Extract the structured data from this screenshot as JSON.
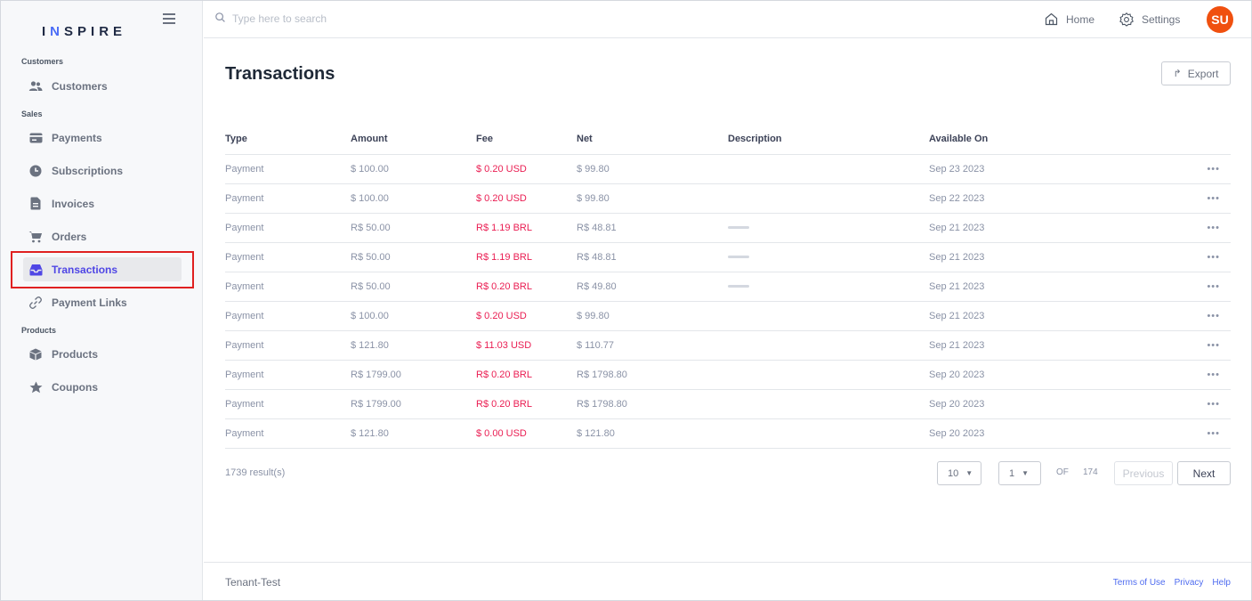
{
  "brand": {
    "logo_prefix": "I",
    "logo_n": "N",
    "logo_suffix": "SPIRE"
  },
  "search": {
    "placeholder": "Type here to search"
  },
  "topnav": {
    "home": "Home",
    "settings": "Settings",
    "avatar": "SU"
  },
  "sidebar": {
    "sections": [
      {
        "label": "Customers"
      },
      {
        "label": "Sales"
      },
      {
        "label": "Products"
      }
    ],
    "items": [
      {
        "label": "Customers",
        "icon": "users-icon"
      },
      {
        "label": "Payments",
        "icon": "credit-card-icon"
      },
      {
        "label": "Subscriptions",
        "icon": "clock-icon"
      },
      {
        "label": "Invoices",
        "icon": "document-icon"
      },
      {
        "label": "Orders",
        "icon": "cart-icon"
      },
      {
        "label": "Transactions",
        "icon": "inbox-icon",
        "active": true
      },
      {
        "label": "Payment Links",
        "icon": "link-icon"
      },
      {
        "label": "Products",
        "icon": "box-icon"
      },
      {
        "label": "Coupons",
        "icon": "star-icon"
      }
    ]
  },
  "page": {
    "title": "Transactions",
    "export_label": "Export"
  },
  "table": {
    "columns": [
      "Type",
      "Amount",
      "Fee",
      "Net",
      "Description",
      "Available On"
    ],
    "rows": [
      {
        "type": "Payment",
        "amount": "$ 100.00",
        "fee": "$ 0.20 USD",
        "net": "$ 99.80",
        "description": "",
        "available_on": "Sep 23 2023"
      },
      {
        "type": "Payment",
        "amount": "$ 100.00",
        "fee": "$ 0.20 USD",
        "net": "$ 99.80",
        "description": "",
        "available_on": "Sep 22 2023"
      },
      {
        "type": "Payment",
        "amount": "R$ 50.00",
        "fee": "R$ 1.19 BRL",
        "net": "R$ 48.81",
        "description": "blurred",
        "available_on": "Sep 21 2023"
      },
      {
        "type": "Payment",
        "amount": "R$ 50.00",
        "fee": "R$ 1.19 BRL",
        "net": "R$ 48.81",
        "description": "blurred",
        "available_on": "Sep 21 2023"
      },
      {
        "type": "Payment",
        "amount": "R$ 50.00",
        "fee": "R$ 0.20 BRL",
        "net": "R$ 49.80",
        "description": "blurred",
        "available_on": "Sep 21 2023"
      },
      {
        "type": "Payment",
        "amount": "$ 100.00",
        "fee": "$ 0.20 USD",
        "net": "$ 99.80",
        "description": "",
        "available_on": "Sep 21 2023"
      },
      {
        "type": "Payment",
        "amount": "$ 121.80",
        "fee": "$ 11.03 USD",
        "net": "$ 110.77",
        "description": "",
        "available_on": "Sep 21 2023"
      },
      {
        "type": "Payment",
        "amount": "R$ 1799.00",
        "fee": "R$ 0.20 BRL",
        "net": "R$ 1798.80",
        "description": "",
        "available_on": "Sep 20 2023"
      },
      {
        "type": "Payment",
        "amount": "R$ 1799.00",
        "fee": "R$ 0.20 BRL",
        "net": "R$ 1798.80",
        "description": "",
        "available_on": "Sep 20 2023"
      },
      {
        "type": "Payment",
        "amount": "$ 121.80",
        "fee": "$ 0.00 USD",
        "net": "$ 121.80",
        "description": "",
        "available_on": "Sep 20 2023"
      }
    ],
    "more_label": "•••"
  },
  "pagination": {
    "results": "1739 result(s)",
    "page_size": "10",
    "current_page": "1",
    "of_label": "OF",
    "total_pages": "174",
    "previous": "Previous",
    "next": "Next"
  },
  "footer": {
    "tenant": "Tenant-Test",
    "links": [
      "Terms of Use",
      "Privacy",
      "Help"
    ]
  },
  "colors": {
    "accent": "#4f46e5",
    "fee": "#ea1d52",
    "avatar": "#f0500f",
    "highlight": "#e02020"
  }
}
